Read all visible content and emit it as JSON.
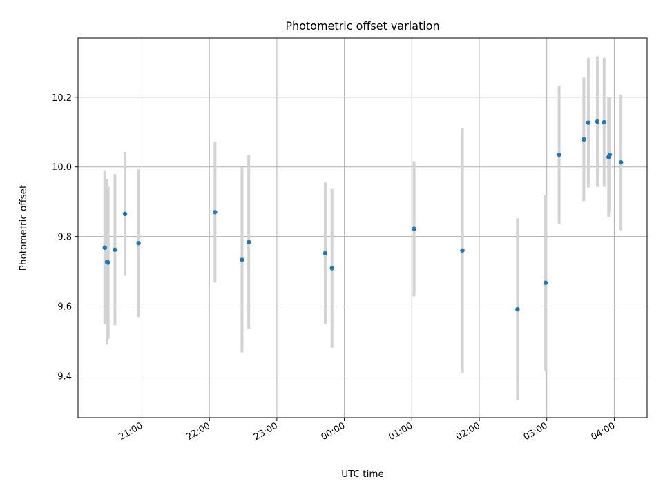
{
  "chart_data": {
    "type": "scatter",
    "title": "Photometric offset variation",
    "xlabel": "UTC time",
    "ylabel": "Photometric offset",
    "x_tick_labels": [
      "21:00",
      "22:00",
      "23:00",
      "00:00",
      "01:00",
      "02:00",
      "03:00",
      "04:00"
    ],
    "y_tick_labels": [
      "9.4",
      "9.6",
      "9.8",
      "10.0",
      "10.2"
    ],
    "ylim": [
      9.28,
      10.37
    ],
    "grid": true,
    "marker_color": "#1f77b4",
    "errorbar_color": "#d3d3d3",
    "points": [
      {
        "x": "20:27",
        "y": 9.768,
        "err": 0.22
      },
      {
        "x": "20:29",
        "y": 9.727,
        "err": 0.238
      },
      {
        "x": "20:30",
        "y": 9.725,
        "err": 0.218
      },
      {
        "x": "20:36",
        "y": 9.762,
        "err": 0.217
      },
      {
        "x": "20:45",
        "y": 9.865,
        "err": 0.178
      },
      {
        "x": "20:57",
        "y": 9.781,
        "err": 0.212
      },
      {
        "x": "22:05",
        "y": 9.87,
        "err": 0.202
      },
      {
        "x": "22:29",
        "y": 9.733,
        "err": 0.266
      },
      {
        "x": "22:35",
        "y": 9.784,
        "err": 0.249
      },
      {
        "x": "23:43",
        "y": 9.752,
        "err": 0.203
      },
      {
        "x": "23:49",
        "y": 9.709,
        "err": 0.228
      },
      {
        "x": "01:02",
        "y": 9.822,
        "err": 0.194
      },
      {
        "x": "01:45",
        "y": 9.76,
        "err": 0.351
      },
      {
        "x": "02:34",
        "y": 9.591,
        "err": 0.261
      },
      {
        "x": "02:59",
        "y": 9.667,
        "err": 0.252
      },
      {
        "x": "03:11",
        "y": 10.035,
        "err": 0.198
      },
      {
        "x": "03:33",
        "y": 10.079,
        "err": 0.177
      },
      {
        "x": "03:37",
        "y": 10.127,
        "err": 0.186
      },
      {
        "x": "03:45",
        "y": 10.13,
        "err": 0.187
      },
      {
        "x": "03:51",
        "y": 10.128,
        "err": 0.185
      },
      {
        "x": "03:55",
        "y": 10.028,
        "err": 0.172
      },
      {
        "x": "03:56",
        "y": 10.035,
        "err": 0.164
      },
      {
        "x": "04:06",
        "y": 10.013,
        "err": 0.195
      }
    ]
  }
}
